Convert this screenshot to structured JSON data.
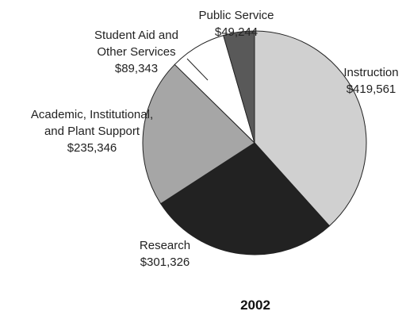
{
  "chart_data": {
    "type": "pie",
    "title": "2002",
    "series": [
      {
        "name": "",
        "values": [
          {
            "label_lines": [
              "Instruction"
            ],
            "value_text": "$419,561",
            "value": 419561,
            "color": "#d0d0d0"
          },
          {
            "label_lines": [
              "Research"
            ],
            "value_text": "$301,326",
            "value": 301326,
            "color": "#222222"
          },
          {
            "label_lines": [
              "Academic, Institutional,",
              "and Plant Support"
            ],
            "value_text": "$235,346",
            "value": 235346,
            "color": "#a6a6a6"
          },
          {
            "label_lines": [
              "Student Aid and",
              "Other Services"
            ],
            "value_text": "$89,343",
            "value": 89343,
            "color": "#ffffff"
          },
          {
            "label_lines": [
              "Public Service"
            ],
            "value_text": "$49,244",
            "value": 49244,
            "color": "#595959"
          }
        ]
      }
    ]
  }
}
